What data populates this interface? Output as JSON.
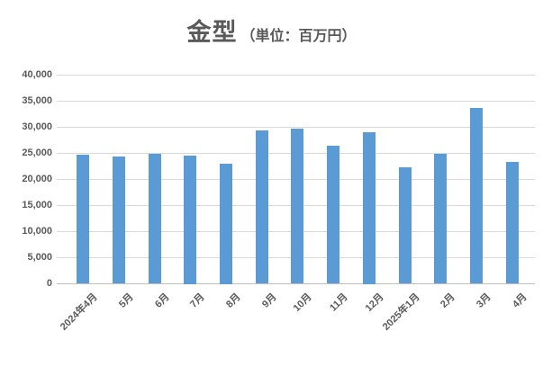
{
  "chart_data": {
    "type": "bar",
    "title": "金型",
    "subtitle": "（単位：百万円）",
    "categories": [
      "2024年4月",
      "5月",
      "6月",
      "7月",
      "8月",
      "9月",
      "10月",
      "11月",
      "12月",
      "2025年1月",
      "2月",
      "3月",
      "4月"
    ],
    "values": [
      24700,
      24400,
      24900,
      24500,
      23000,
      29400,
      29700,
      26400,
      29000,
      22200,
      24800,
      33600,
      23300
    ],
    "ylabel": "",
    "xlabel": "",
    "ylim": [
      0,
      40000
    ],
    "ytick_step": 5000,
    "ytick_labels": [
      "0",
      "5,000",
      "10,000",
      "15,000",
      "20,000",
      "25,000",
      "30,000",
      "35,000",
      "40,000"
    ],
    "legend_position": "none",
    "grid": "horizontal",
    "bar_color": "#5B9BD5",
    "gridline_color": "#D9D9D9",
    "axis_line_color": "#BFBFBF",
    "text_color": "#595959"
  }
}
